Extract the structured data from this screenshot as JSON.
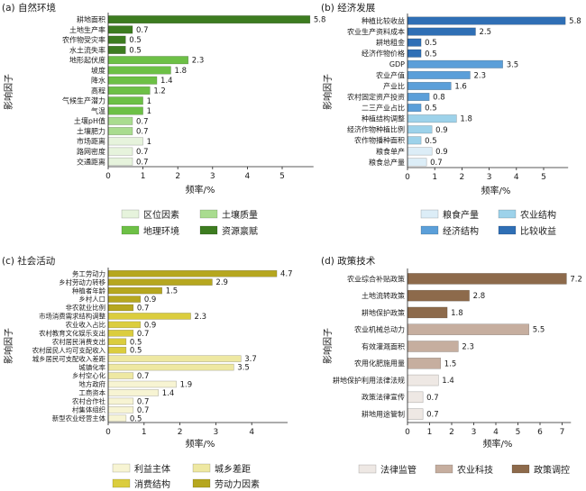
{
  "chart_data": [
    {
      "type": "bar",
      "title": "(a) 自然环境",
      "xlabel": "频率/%",
      "ylabel": "影响因子",
      "xlim": [
        0,
        5.9
      ],
      "xticks": [
        0,
        1,
        2,
        3,
        4,
        5
      ],
      "legend_position": "bottom",
      "legend": [
        {
          "name": "区位因素",
          "color": "#e6f3dc"
        },
        {
          "name": "土壤质量",
          "color": "#a9dc8f"
        },
        {
          "name": "地理环境",
          "color": "#6dc046"
        },
        {
          "name": "资源禀赋",
          "color": "#3d7c20"
        }
      ],
      "categories": [
        "耕地面积",
        "土地生产率",
        "农作物受灾率",
        "水土流失率",
        "地形起伏度",
        "坡度",
        "降水",
        "高程",
        "气候生产潜力",
        "气温",
        "土壤pH值",
        "土壤肥力",
        "市场距离",
        "路网密度",
        "交通距离"
      ],
      "values": [
        5.8,
        0.7,
        0.5,
        0.5,
        2.3,
        1.8,
        1.4,
        1.2,
        1,
        1,
        0.7,
        0.7,
        1,
        0.7,
        0.7
      ],
      "group_index": [
        3,
        3,
        3,
        3,
        2,
        2,
        2,
        2,
        2,
        2,
        1,
        1,
        0,
        0,
        0
      ]
    },
    {
      "type": "bar",
      "title": "(b) 经济发展",
      "xlabel": "频率/%",
      "ylabel": "影响因子",
      "xlim": [
        0,
        5.9
      ],
      "xticks": [
        0,
        1,
        2,
        3,
        4,
        5
      ],
      "legend_position": "bottom",
      "legend": [
        {
          "name": "粮食产量",
          "color": "#dcedf7"
        },
        {
          "name": "农业结构",
          "color": "#9dd2ea"
        },
        {
          "name": "经济结构",
          "color": "#5b9fd9"
        },
        {
          "name": "比较收益",
          "color": "#2f6fb5"
        }
      ],
      "categories": [
        "种植比较收益",
        "农业生产资料成本",
        "耕地租金",
        "经济作物价格",
        "GDP",
        "农业产值",
        "产业比",
        "农村固定资产投资",
        "二三产业占比",
        "种植结构调整",
        "经济作物种植比例",
        "农作物播种面积",
        "粮食单产",
        "粮食总产量"
      ],
      "values": [
        5.8,
        2.5,
        0.5,
        0.5,
        3.5,
        2.3,
        1.6,
        0.8,
        0.5,
        1.8,
        0.9,
        0.5,
        0.9,
        0.7
      ],
      "group_index": [
        3,
        3,
        3,
        3,
        2,
        2,
        2,
        2,
        2,
        1,
        1,
        1,
        0,
        0
      ]
    },
    {
      "type": "bar",
      "title": "(c) 社会活动",
      "xlabel": "频率/%",
      "ylabel": "影响因子",
      "xlim": [
        0,
        5
      ],
      "xticks": [
        0,
        1,
        2,
        3,
        4
      ],
      "legend_position": "bottom",
      "legend": [
        {
          "name": "利益主体",
          "color": "#f7f4d3"
        },
        {
          "name": "城乡差距",
          "color": "#eee8a2"
        },
        {
          "name": "消费结构",
          "color": "#dbcd3e"
        },
        {
          "name": "劳动力因素",
          "color": "#b6a71f"
        }
      ],
      "categories": [
        "务工劳动力",
        "乡村劳动力转移",
        "种植者年龄",
        "乡村人口",
        "非农就业比例",
        "市场消费需求结构调整",
        "农业收入占比",
        "农村教育文化娱乐支出",
        "农村居民消费支出",
        "农村居民人均可支配收入",
        "城乡居民可支配收入差距",
        "城镇化率",
        "乡村空心化",
        "地方政府",
        "工商资本",
        "农村合作社",
        "村集体组织",
        "新型农业经营主体"
      ],
      "values": [
        4.7,
        2.9,
        1.5,
        0.9,
        0.7,
        2.3,
        0.9,
        0.7,
        0.5,
        0.5,
        3.7,
        3.5,
        0.7,
        1.9,
        1.4,
        0.7,
        0.7,
        0.5
      ],
      "group_index": [
        3,
        3,
        3,
        3,
        3,
        2,
        2,
        2,
        2,
        2,
        1,
        1,
        1,
        0,
        0,
        0,
        0,
        0
      ]
    },
    {
      "type": "bar",
      "title": "(d) 政策技术",
      "xlabel": "频率/%",
      "ylabel": "影响因子",
      "xlim": [
        0,
        7.4
      ],
      "xticks": [
        0,
        1,
        2,
        3,
        4,
        5,
        6,
        7
      ],
      "legend_position": "bottom",
      "legend": [
        {
          "name": "法律监管",
          "color": "#eee8e4"
        },
        {
          "name": "农业科技",
          "color": "#c6ae9f"
        },
        {
          "name": "政策调控",
          "color": "#8d6a4b"
        }
      ],
      "categories": [
        "农业综合补贴政策",
        "土地流转政策",
        "耕地保护政策",
        "农业机械总动力",
        "有效灌溉面积",
        "农用化肥施用量",
        "耕地保护利用法律法规",
        "政策法律宣传",
        "耕地用途管制"
      ],
      "values": [
        7.2,
        2.8,
        1.8,
        5.5,
        2.3,
        1.5,
        1.4,
        0.7,
        0.7
      ],
      "group_index": [
        2,
        2,
        2,
        1,
        1,
        1,
        0,
        0,
        0
      ]
    }
  ]
}
